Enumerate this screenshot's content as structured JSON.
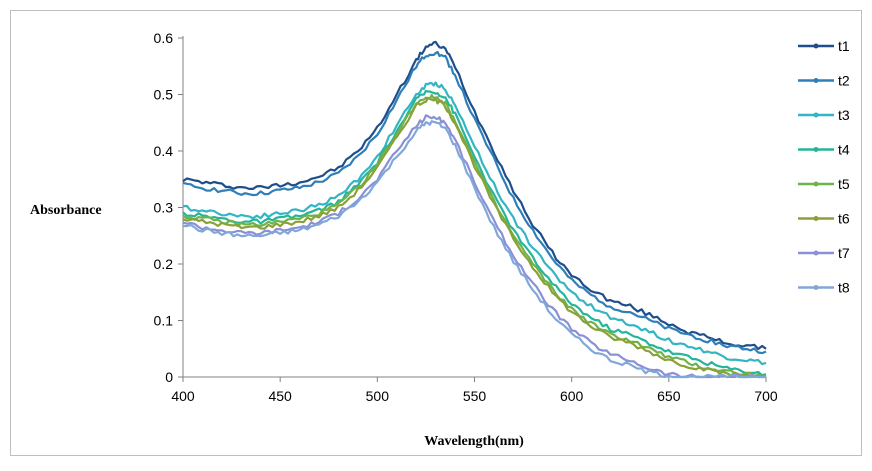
{
  "chart_data": {
    "type": "line",
    "xlabel": "Wavelength(nm)",
    "ylabel": "Absorbance",
    "xlim": [
      400,
      700
    ],
    "ylim": [
      0,
      0.6
    ],
    "xticks": [
      "400",
      "450",
      "500",
      "550",
      "600",
      "650",
      "700"
    ],
    "yticks": [
      "0",
      "0.1",
      "0.2",
      "0.3",
      "0.4",
      "0.5",
      "0.6"
    ],
    "grid": false,
    "legend_position": "right",
    "x": [
      400,
      410,
      420,
      430,
      440,
      450,
      460,
      470,
      480,
      490,
      500,
      510,
      520,
      525,
      530,
      535,
      540,
      550,
      560,
      570,
      580,
      590,
      600,
      610,
      620,
      630,
      640,
      650,
      660,
      670,
      680,
      690,
      700
    ],
    "series": [
      {
        "name": "t1",
        "color": "#1f4e8c",
        "values": [
          0.35,
          0.345,
          0.34,
          0.335,
          0.335,
          0.34,
          0.345,
          0.355,
          0.37,
          0.4,
          0.44,
          0.5,
          0.56,
          0.585,
          0.59,
          0.58,
          0.55,
          0.47,
          0.4,
          0.33,
          0.27,
          0.22,
          0.18,
          0.155,
          0.135,
          0.125,
          0.11,
          0.095,
          0.08,
          0.07,
          0.06,
          0.055,
          0.05
        ]
      },
      {
        "name": "t2",
        "color": "#2e7fb8",
        "values": [
          0.34,
          0.335,
          0.33,
          0.325,
          0.325,
          0.33,
          0.335,
          0.345,
          0.36,
          0.39,
          0.43,
          0.49,
          0.55,
          0.57,
          0.575,
          0.565,
          0.535,
          0.455,
          0.385,
          0.315,
          0.26,
          0.21,
          0.17,
          0.145,
          0.125,
          0.115,
          0.1,
          0.085,
          0.075,
          0.065,
          0.055,
          0.05,
          0.045
        ]
      },
      {
        "name": "t3",
        "color": "#33b5c4",
        "values": [
          0.3,
          0.295,
          0.29,
          0.285,
          0.285,
          0.29,
          0.295,
          0.305,
          0.32,
          0.35,
          0.39,
          0.445,
          0.5,
          0.515,
          0.52,
          0.51,
          0.48,
          0.41,
          0.34,
          0.28,
          0.23,
          0.185,
          0.15,
          0.125,
          0.105,
          0.095,
          0.08,
          0.065,
          0.055,
          0.045,
          0.035,
          0.03,
          0.025
        ]
      },
      {
        "name": "t4",
        "color": "#26b59a",
        "values": [
          0.29,
          0.285,
          0.28,
          0.275,
          0.275,
          0.28,
          0.285,
          0.295,
          0.31,
          0.34,
          0.38,
          0.435,
          0.49,
          0.505,
          0.505,
          0.495,
          0.465,
          0.39,
          0.32,
          0.26,
          0.21,
          0.165,
          0.13,
          0.105,
          0.085,
          0.075,
          0.06,
          0.045,
          0.035,
          0.025,
          0.015,
          0.01,
          0.005
        ]
      },
      {
        "name": "t5",
        "color": "#6db34a",
        "values": [
          0.285,
          0.28,
          0.275,
          0.27,
          0.27,
          0.275,
          0.28,
          0.29,
          0.305,
          0.335,
          0.375,
          0.43,
          0.485,
          0.495,
          0.495,
          0.485,
          0.455,
          0.38,
          0.31,
          0.25,
          0.2,
          0.155,
          0.12,
          0.095,
          0.075,
          0.065,
          0.05,
          0.035,
          0.025,
          0.015,
          0.01,
          0.005,
          0.003
        ]
      },
      {
        "name": "t6",
        "color": "#8aa135",
        "values": [
          0.28,
          0.275,
          0.27,
          0.265,
          0.265,
          0.27,
          0.275,
          0.285,
          0.3,
          0.33,
          0.37,
          0.425,
          0.48,
          0.49,
          0.49,
          0.48,
          0.45,
          0.375,
          0.305,
          0.245,
          0.195,
          0.15,
          0.115,
          0.09,
          0.07,
          0.06,
          0.045,
          0.03,
          0.02,
          0.012,
          0.006,
          0.003,
          0.002
        ]
      },
      {
        "name": "t7",
        "color": "#8b8fd6",
        "values": [
          0.275,
          0.265,
          0.26,
          0.255,
          0.255,
          0.26,
          0.265,
          0.275,
          0.29,
          0.315,
          0.35,
          0.4,
          0.445,
          0.46,
          0.46,
          0.45,
          0.42,
          0.345,
          0.275,
          0.215,
          0.165,
          0.12,
          0.085,
          0.06,
          0.04,
          0.03,
          0.015,
          0.005,
          0.001,
          0.0,
          0.0,
          0.0,
          0.0
        ]
      },
      {
        "name": "t8",
        "color": "#7fa8d9",
        "values": [
          0.27,
          0.26,
          0.255,
          0.25,
          0.25,
          0.255,
          0.26,
          0.27,
          0.285,
          0.31,
          0.345,
          0.39,
          0.435,
          0.45,
          0.45,
          0.44,
          0.41,
          0.335,
          0.265,
          0.205,
          0.155,
          0.11,
          0.075,
          0.05,
          0.03,
          0.02,
          0.008,
          0.002,
          0.0,
          0.0,
          0.0,
          0.0,
          0.0
        ]
      }
    ]
  }
}
